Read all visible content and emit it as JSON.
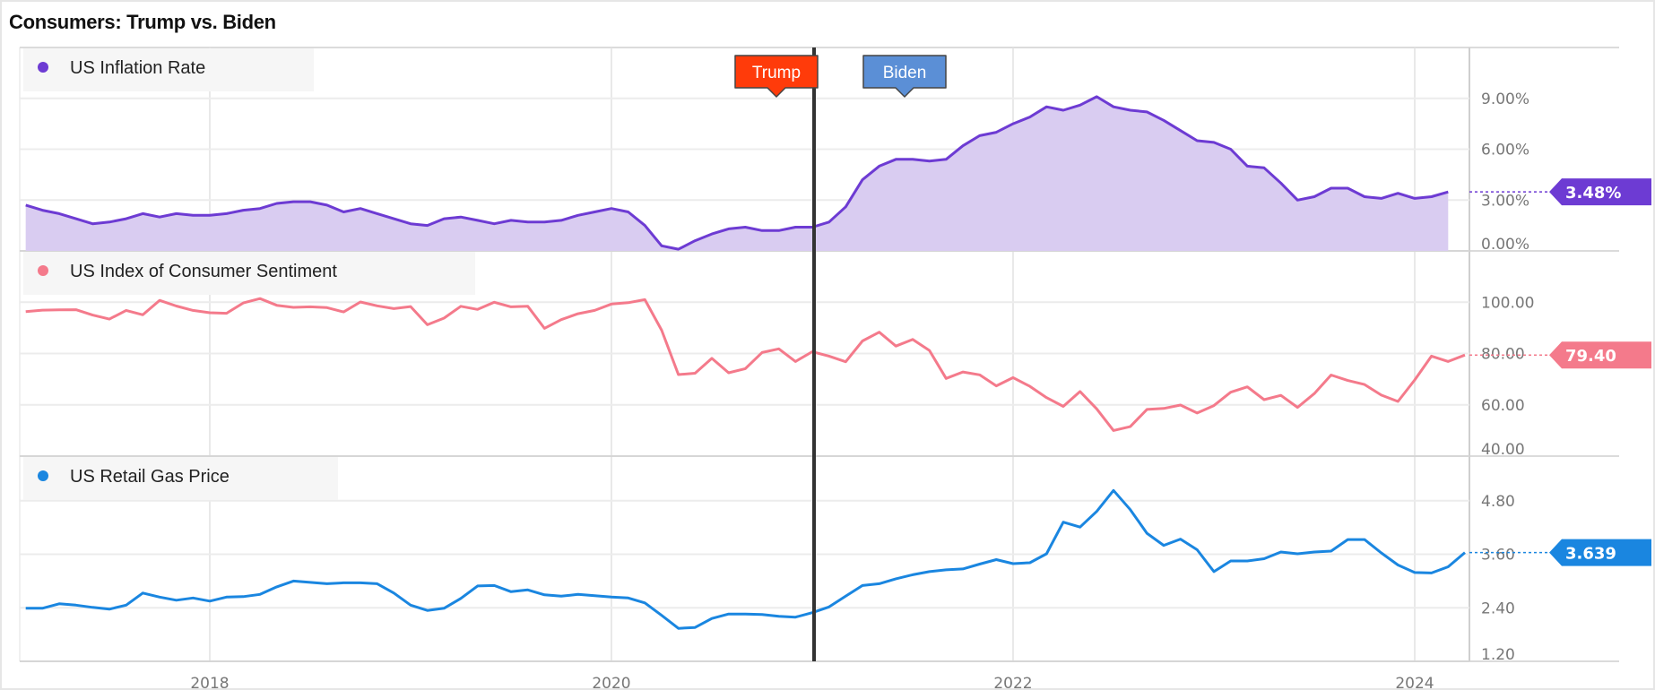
{
  "title": "Consumers: Trump vs. Biden",
  "annotations": {
    "trump_label": "Trump",
    "biden_label": "Biden",
    "trump_color": "#ff3b0a",
    "biden_color": "#5b8fd6",
    "divider_date": "2021-01"
  },
  "chart_data": [
    {
      "type": "area",
      "name": "US Inflation Rate",
      "color": "#6d3bd3",
      "fill": "#d9ccf1",
      "start": "2017-02",
      "frequency": "monthly",
      "ylim": [
        0,
        12
      ],
      "yticks": [
        0,
        3,
        6,
        9
      ],
      "ytick_labels": [
        "0.00%",
        "3.00%",
        "6.00%",
        "9.00%"
      ],
      "last_value_label": "3.48%",
      "values": [
        2.7,
        2.4,
        2.2,
        1.9,
        1.6,
        1.7,
        1.9,
        2.2,
        2.0,
        2.2,
        2.1,
        2.1,
        2.2,
        2.4,
        2.5,
        2.8,
        2.9,
        2.9,
        2.7,
        2.3,
        2.5,
        2.2,
        1.9,
        1.6,
        1.5,
        1.9,
        2.0,
        1.8,
        1.6,
        1.8,
        1.7,
        1.7,
        1.8,
        2.1,
        2.3,
        2.5,
        2.3,
        1.5,
        0.3,
        0.1,
        0.6,
        1.0,
        1.3,
        1.4,
        1.2,
        1.2,
        1.4,
        1.4,
        1.7,
        2.6,
        4.2,
        5.0,
        5.4,
        5.4,
        5.3,
        5.4,
        6.2,
        6.8,
        7.0,
        7.5,
        7.9,
        8.5,
        8.3,
        8.6,
        9.1,
        8.5,
        8.3,
        8.2,
        7.7,
        7.1,
        6.5,
        6.4,
        6.0,
        5.0,
        4.9,
        4.0,
        3.0,
        3.2,
        3.7,
        3.7,
        3.2,
        3.1,
        3.4,
        3.1,
        3.2,
        3.48
      ]
    },
    {
      "type": "line",
      "name": "US Index of Consumer Sentiment",
      "color": "#f47a8b",
      "start": "2017-02",
      "frequency": "monthly",
      "ylim": [
        40,
        120
      ],
      "yticks": [
        40,
        60,
        80,
        100
      ],
      "ytick_labels": [
        "40.00",
        "60.00",
        "80.00",
        "100.00"
      ],
      "last_value_label": "79.40",
      "values": [
        96.3,
        96.9,
        97.0,
        97.1,
        95.0,
        93.4,
        96.8,
        95.1,
        100.7,
        98.5,
        96.8,
        95.9,
        95.7,
        99.7,
        101.4,
        98.8,
        98.0,
        98.2,
        97.9,
        96.2,
        100.1,
        98.6,
        97.5,
        98.3,
        91.2,
        93.8,
        98.4,
        97.2,
        100.0,
        98.2,
        98.4,
        89.8,
        93.2,
        95.5,
        96.8,
        99.3,
        99.8,
        101.0,
        89.1,
        71.8,
        72.3,
        78.1,
        72.5,
        74.1,
        80.4,
        81.8,
        76.9,
        80.7,
        79.0,
        76.8,
        84.9,
        88.3,
        82.9,
        85.5,
        81.2,
        70.3,
        72.8,
        71.7,
        67.4,
        70.6,
        67.2,
        62.8,
        59.4,
        65.2,
        58.4,
        50.0,
        51.5,
        58.2,
        58.6,
        59.9,
        56.8,
        59.7,
        64.9,
        67.0,
        62.0,
        63.7,
        59.0,
        64.4,
        71.6,
        69.5,
        67.9,
        63.8,
        61.3,
        69.7,
        79.0,
        76.9,
        79.4
      ]
    },
    {
      "type": "line",
      "name": "US Retail Gas Price",
      "color": "#1a86e0",
      "start": "2017-02",
      "frequency": "monthly",
      "ylim": [
        1.2,
        5.8
      ],
      "yticks": [
        1.2,
        2.4,
        3.6,
        4.8
      ],
      "ytick_labels": [
        "1.20",
        "2.40",
        "3.60",
        "4.80"
      ],
      "last_value_label": "3.639",
      "values": [
        2.39,
        2.39,
        2.49,
        2.46,
        2.41,
        2.37,
        2.46,
        2.73,
        2.64,
        2.57,
        2.62,
        2.55,
        2.64,
        2.65,
        2.7,
        2.87,
        3.0,
        2.97,
        2.94,
        2.96,
        2.96,
        2.94,
        2.73,
        2.46,
        2.34,
        2.39,
        2.61,
        2.89,
        2.9,
        2.76,
        2.8,
        2.69,
        2.66,
        2.7,
        2.67,
        2.64,
        2.62,
        2.51,
        2.23,
        1.94,
        1.96,
        2.16,
        2.26,
        2.26,
        2.25,
        2.21,
        2.19,
        2.29,
        2.42,
        2.66,
        2.9,
        2.94,
        3.05,
        3.14,
        3.21,
        3.25,
        3.27,
        3.38,
        3.48,
        3.39,
        3.41,
        3.61,
        4.32,
        4.21,
        4.56,
        5.03,
        4.6,
        4.07,
        3.8,
        3.94,
        3.7,
        3.21,
        3.45,
        3.45,
        3.5,
        3.65,
        3.61,
        3.65,
        3.67,
        3.93,
        3.93,
        3.63,
        3.36,
        3.19,
        3.18,
        3.32,
        3.639
      ]
    }
  ],
  "x_axis": {
    "ticks": [
      2018,
      2020,
      2022,
      2024
    ],
    "tick_labels": [
      "2018",
      "2020",
      "2022",
      "2024"
    ],
    "range": [
      "2017-01",
      "2025-03"
    ]
  }
}
